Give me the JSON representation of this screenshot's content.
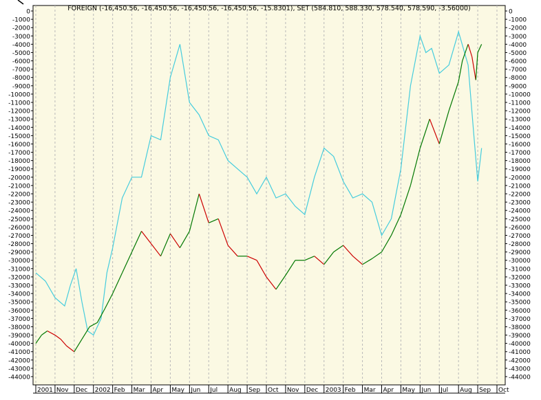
{
  "chart_data": {
    "type": "line",
    "title": "FOREIGN (-16,450.56, -16,450.56, -16,450.56, -16,450.56, -15.8301), SET (584.810, 588.330, 578.540, 578.590, -3.56000)",
    "ylim": [
      -44000,
      0
    ],
    "y_ticks": [
      0,
      -1000,
      -2000,
      -3000,
      -4000,
      -5000,
      -6000,
      -7000,
      -8000,
      -9000,
      -10000,
      -11000,
      -12000,
      -13000,
      -14000,
      -15000,
      -16000,
      -17000,
      -18000,
      -19000,
      -20000,
      -21000,
      -22000,
      -23000,
      -24000,
      -25000,
      -26000,
      -27000,
      -28000,
      -29000,
      -30000,
      -31000,
      -32000,
      -33000,
      -34000,
      -35000,
      -36000,
      -37000,
      -38000,
      -39000,
      -40000,
      -41000,
      -42000,
      -43000,
      -44000
    ],
    "x_ticks": [
      "2001",
      "Nov",
      "Dec",
      "2002",
      "Feb",
      "Mar",
      "Apr",
      "May",
      "Jun",
      "Jul",
      "Aug",
      "Sep",
      "Oct",
      "Nov",
      "Dec",
      "2003",
      "Feb",
      "Mar",
      "Apr",
      "May",
      "Jun",
      "Jul",
      "Aug",
      "Sep",
      "Oct"
    ],
    "grid": true,
    "series": [
      {
        "name": "FOREIGN",
        "color_up": "#007700",
        "color_down": "#cc0000",
        "x": [
          0,
          0.3,
          0.6,
          1,
          1.3,
          1.6,
          2,
          2.4,
          2.8,
          3.2,
          3.6,
          4,
          4.5,
          5,
          5.5,
          6,
          6.5,
          7,
          7.5,
          8,
          8.5,
          9,
          9.5,
          10,
          10.5,
          11,
          11.5,
          12,
          12.5,
          13,
          13.5,
          14,
          14.5,
          15,
          15.5,
          16,
          16.5,
          17,
          17.5,
          18,
          18.5,
          19,
          19.5,
          20,
          20.5,
          21,
          21.5,
          22,
          22.2,
          22.5,
          22.7,
          22.9,
          23,
          23.2
        ],
        "values": [
          -40000,
          -39000,
          -38500,
          -39000,
          -39500,
          -40300,
          -41000,
          -39500,
          -38000,
          -37500,
          -35800,
          -34000,
          -31500,
          -29000,
          -26500,
          -28000,
          -29500,
          -26800,
          -28500,
          -26500,
          -22000,
          -25500,
          -25000,
          -28200,
          -29500,
          -29500,
          -30000,
          -32000,
          -33500,
          -31800,
          -30000,
          -30000,
          -29500,
          -30500,
          -29000,
          -28200,
          -29500,
          -30500,
          -29800,
          -29000,
          -27000,
          -24500,
          -21000,
          -16500,
          -13000,
          -16000,
          -12000,
          -8500,
          -6000,
          -4000,
          -5500,
          -8300,
          -5000,
          -4000
        ]
      },
      {
        "name": "SET",
        "color": "#44ccdd",
        "x": [
          0,
          0.5,
          1,
          1.5,
          1.8,
          2.1,
          2.4,
          2.7,
          3,
          3.4,
          3.7,
          4,
          4.5,
          5,
          5.5,
          6,
          6.5,
          7,
          7.5,
          8,
          8.5,
          9,
          9.5,
          10,
          10.5,
          11,
          11.5,
          12,
          12.5,
          13,
          13.5,
          14,
          14.5,
          15,
          15.5,
          16,
          16.5,
          17,
          17.5,
          18,
          18.5,
          19,
          19.5,
          20,
          20.3,
          20.6,
          21,
          21.5,
          22,
          22.5,
          22.8,
          23,
          23.2
        ],
        "values": [
          -31500,
          -32500,
          -34500,
          -35500,
          -33000,
          -31000,
          -35000,
          -38500,
          -39000,
          -37000,
          -31500,
          -28500,
          -22500,
          -20000,
          -20000,
          -15000,
          -15500,
          -8000,
          -4000,
          -11000,
          -12500,
          -15000,
          -15500,
          -18000,
          -19000,
          -20000,
          -22000,
          -20000,
          -22500,
          -22000,
          -23500,
          -24500,
          -20000,
          -16500,
          -17500,
          -20500,
          -22500,
          -22000,
          -23000,
          -27000,
          -25000,
          -19000,
          -9000,
          -3000,
          -5000,
          -4500,
          -7500,
          -6500,
          -2500,
          -6500,
          -15000,
          -20500,
          -16500
        ]
      }
    ]
  }
}
